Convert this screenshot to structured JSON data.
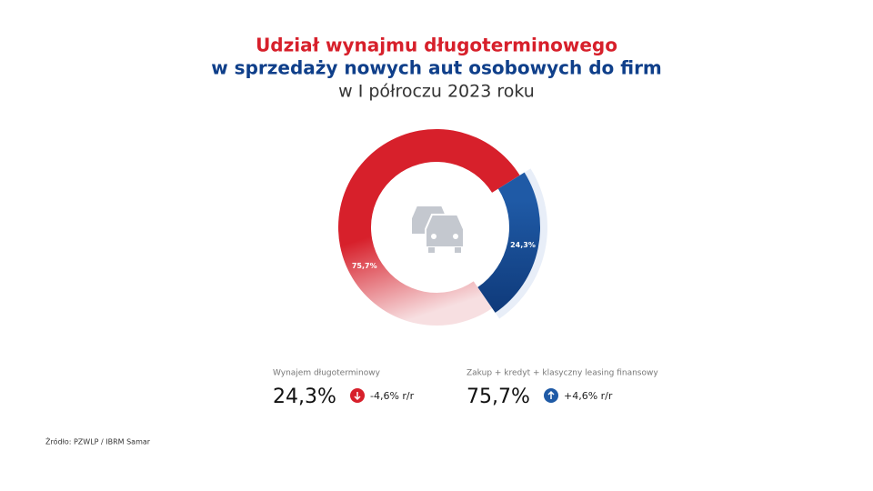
{
  "chart_data": {
    "type": "pie",
    "title": "Udział wynajmu długoterminowego",
    "subtitle": "w sprzedaży nowych aut osobowych do firm",
    "period": "w I półroczu 2023 roku",
    "categories": [
      "Zakup + kredyt + klasyczny leasing finansowy",
      "Wynajem długoterminowy"
    ],
    "values": [
      75.7,
      24.3
    ],
    "value_labels": [
      "75,7%",
      "24,3%"
    ],
    "colors": [
      "#d7202b",
      "#1f5aa6"
    ],
    "changes": [
      4.6,
      -4.6
    ],
    "change_labels": [
      "+4,6% r/r",
      "-4,6% r/r"
    ],
    "source": "Źródło: PZWLP / IBRM Samar"
  }
}
